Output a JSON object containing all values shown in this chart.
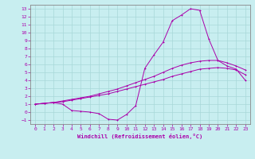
{
  "xlabel": "Windchill (Refroidissement éolien,°C)",
  "background_color": "#c8eef0",
  "grid_color": "#a8d8d8",
  "line_color": "#aa00aa",
  "xlim": [
    -0.5,
    23.5
  ],
  "ylim": [
    -1.5,
    13.5
  ],
  "xticks": [
    0,
    1,
    2,
    3,
    4,
    5,
    6,
    7,
    8,
    9,
    10,
    11,
    12,
    13,
    14,
    15,
    16,
    17,
    18,
    19,
    20,
    21,
    22,
    23
  ],
  "yticks": [
    -1,
    0,
    1,
    2,
    3,
    4,
    5,
    6,
    7,
    8,
    9,
    10,
    11,
    12,
    13
  ],
  "curve1_x": [
    0,
    1,
    2,
    3,
    4,
    5,
    6,
    7,
    8,
    9,
    10,
    11,
    12,
    13,
    14,
    15,
    16,
    17,
    18,
    19,
    20,
    21,
    22,
    23
  ],
  "curve1_y": [
    1.0,
    1.1,
    1.2,
    1.3,
    1.5,
    1.7,
    1.9,
    2.1,
    2.3,
    2.6,
    2.9,
    3.2,
    3.5,
    3.8,
    4.1,
    4.5,
    4.8,
    5.1,
    5.4,
    5.5,
    5.6,
    5.5,
    5.3,
    4.7
  ],
  "curve2_x": [
    0,
    1,
    2,
    3,
    4,
    5,
    6,
    7,
    8,
    9,
    10,
    11,
    12,
    13,
    14,
    15,
    16,
    17,
    18,
    19,
    20,
    21,
    22,
    23
  ],
  "curve2_y": [
    1.0,
    1.1,
    1.2,
    1.4,
    1.6,
    1.8,
    2.0,
    2.3,
    2.6,
    2.9,
    3.3,
    3.7,
    4.1,
    4.5,
    5.0,
    5.5,
    5.9,
    6.2,
    6.4,
    6.5,
    6.5,
    6.2,
    5.8,
    5.3
  ],
  "curve3_x": [
    0,
    1,
    2,
    3,
    4,
    5,
    6,
    7,
    8,
    9,
    10,
    11,
    12,
    13,
    14,
    15,
    16,
    17,
    18,
    19,
    20,
    21,
    22,
    23
  ],
  "curve3_y": [
    1.0,
    1.1,
    1.2,
    1.0,
    0.2,
    0.1,
    0.0,
    -0.2,
    -0.9,
    -1.0,
    -0.3,
    0.8,
    5.5,
    7.2,
    8.8,
    11.5,
    12.2,
    13.0,
    12.8,
    9.2,
    6.5,
    5.8,
    5.4,
    4.0
  ]
}
